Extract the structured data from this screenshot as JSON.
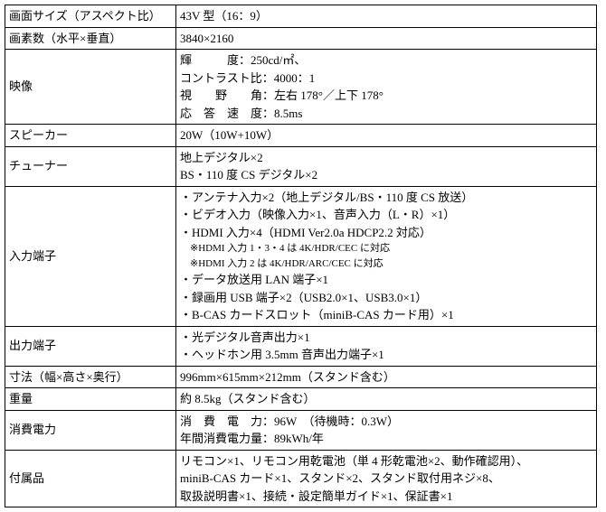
{
  "rows": [
    {
      "label": "画面サイズ（アスペクト比）",
      "value": "43V 型（16：9）"
    },
    {
      "label": "画素数（水平×垂直）",
      "value": "3840×2160"
    },
    {
      "label": "映像",
      "lines": [
        "輝　　　度：250cd/㎡、",
        "コントラスト比：4000：1",
        "視　　野　　角：左右 178°／上下 178°",
        "応　答　速　度：8.5ms"
      ]
    },
    {
      "label": "スピーカー",
      "value": "20W（10W+10W）"
    },
    {
      "label": "チューナー",
      "lines": [
        "地上デジタル×2",
        "BS・110 度 CS デジタル×2"
      ]
    },
    {
      "label": "入力端子",
      "lines": [
        "・アンテナ入力×2（地上デジタル/BS・110 度 CS 放送）",
        "・ビデオ入力（映像入力×1、音声入力（L・R）×1）",
        "・HDMI 入力×4（HDMI Ver2.0a HDCP2.2 対応）",
        {
          "note": "※HDMI 入力 1・3・4 は 4K/HDR/CEC に対応"
        },
        {
          "note": "※HDMI 入力 2 は 4K/HDR/ARC/CEC に対応"
        },
        "・データ放送用 LAN 端子×1",
        "・録画用 USB 端子×2（USB2.0×1、USB3.0×1）",
        "・B-CAS カードスロット（miniB-CAS カード用）×1"
      ]
    },
    {
      "label": "出力端子",
      "lines": [
        "・光デジタル音声出力×1",
        "・ヘッドホン用 3.5mm 音声出力端子×1"
      ]
    },
    {
      "label": "寸法（幅×高さ×奥行）",
      "value": "996mm×615mm×212mm（スタンド含む）"
    },
    {
      "label": "重量",
      "value": "約 8.5kg（スタンド含む）"
    },
    {
      "label": "消費電力",
      "lines": [
        "消　費　電　力：96W　（待機時：0.3W）",
        "年間消費電力量：89kWh/年"
      ]
    },
    {
      "label": "付属品",
      "lines": [
        "リモコン×1、リモコン用乾電池（単 4 形乾電池×2、動作確認用）、",
        "miniB-CAS カード×1、スタンド×2、スタンド取付用ネジ×8、",
        "取扱説明書×1、接続・設定簡単ガイド×1、保証書×1"
      ]
    }
  ]
}
